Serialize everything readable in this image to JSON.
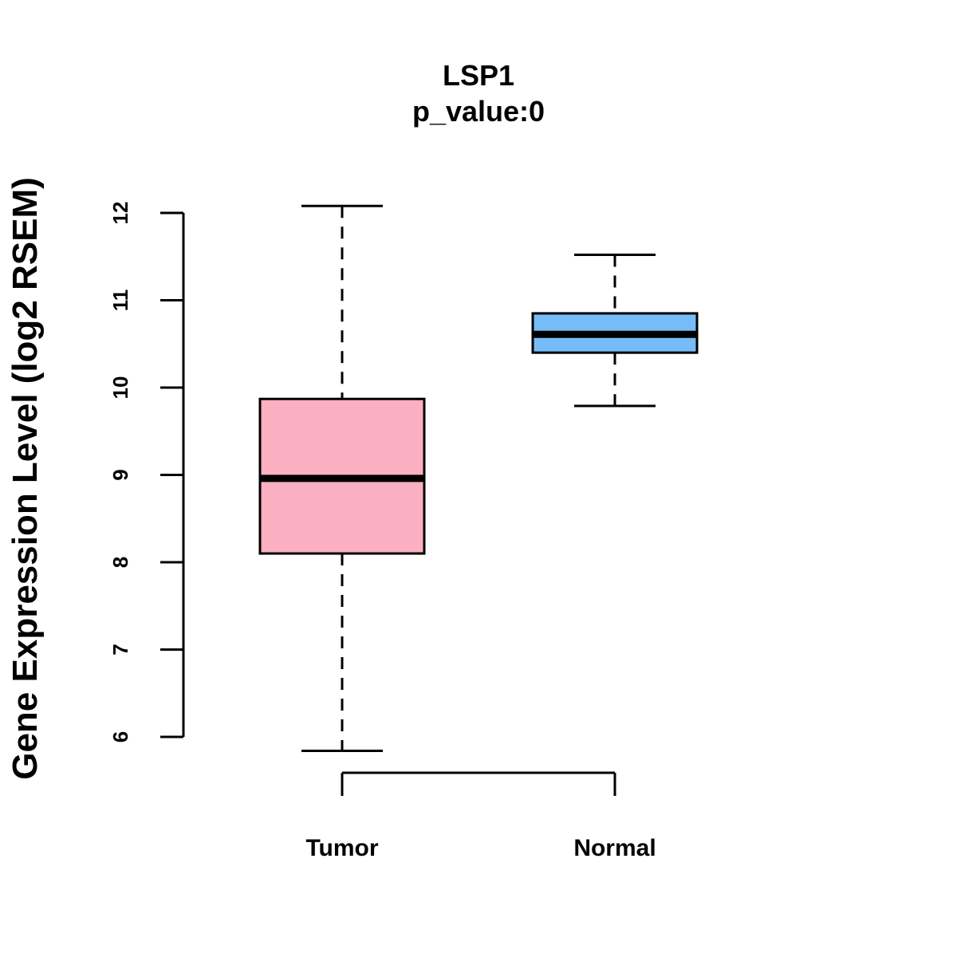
{
  "chart_data": {
    "type": "boxplot",
    "title": "LSP1",
    "subtitle": "p_value:0",
    "xlabel": "",
    "ylabel": "Gene Expression Level (log2 RSEM)",
    "ylim": [
      5.7,
      12.2
    ],
    "yticks": [
      6,
      7,
      8,
      9,
      10,
      11,
      12
    ],
    "categories": [
      "Tumor",
      "Normal"
    ],
    "boxes": [
      {
        "name": "Tumor",
        "whisker_low": 5.84,
        "q1": 8.1,
        "median": 8.96,
        "q3": 9.87,
        "whisker_high": 12.08,
        "color": "#FBB0C1"
      },
      {
        "name": "Normal",
        "whisker_low": 9.79,
        "q1": 10.4,
        "median": 10.61,
        "q3": 10.85,
        "whisker_high": 11.52,
        "color": "#76BDF8"
      }
    ],
    "grid": false,
    "legend": "none"
  }
}
